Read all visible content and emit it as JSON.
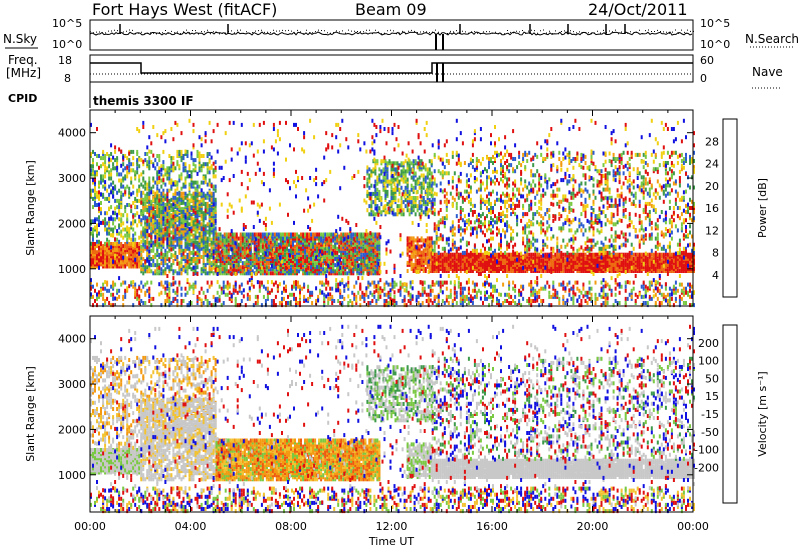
{
  "header": {
    "station": "Fort Hays West (fitACF)",
    "beam": "Beam 09",
    "date": "24/Oct/2011"
  },
  "top_panels": {
    "noise_left_label": "N.Sky",
    "noise_right_label": "N.Search",
    "noise_ticks_left": [
      "10^5",
      "10^0"
    ],
    "noise_ticks_right": [
      "10^5",
      "10^0"
    ],
    "freq_label_1": "Freq.",
    "freq_label_2": "[MHz]",
    "freq_ticks": [
      "18",
      "8"
    ],
    "nave_label": "Nave",
    "nave_ticks": [
      "60",
      "0"
    ],
    "cpid_label": "CPID",
    "cpid_value": "themis 3300 IF"
  },
  "colors": {
    "power": [
      "#1010e0",
      "#2a5bd0",
      "#3c9a4a",
      "#7ac943",
      "#f0d010",
      "#f39c12",
      "#ee6a10",
      "#e01010"
    ],
    "velocity": [
      "#e01010",
      "#ee5a10",
      "#f39a12",
      "#f2c230",
      "#c8c8c8",
      "#c8c8c8",
      "#7ac943",
      "#3c9a4a",
      "#2a5bd0",
      "#1010e0"
    ]
  },
  "chart_data": [
    {
      "type": "heatmap",
      "title": "Power",
      "xlabel": "Time UT",
      "ylabel": "Slant Range [km]",
      "x_ticks": [
        "00:00",
        "04:00",
        "08:00",
        "12:00",
        "16:00",
        "20:00",
        "00:00"
      ],
      "xlim_hours": [
        0,
        24
      ],
      "ylim": [
        180,
        4500
      ],
      "y_ticks": [
        1000,
        2000,
        3000,
        4000
      ],
      "colorbar_label": "Power [dB]",
      "colorbar_ticks": [
        4,
        8,
        12,
        16,
        20,
        24,
        28
      ],
      "colorbar_range": [
        0,
        32
      ],
      "features": [
        {
          "hours": [
            0,
            2
          ],
          "range_km": [
            1050,
            1500
          ],
          "value_db": 24
        },
        {
          "hours": [
            2,
            5
          ],
          "range_km": [
            1000,
            2700
          ],
          "value_db": 14
        },
        {
          "hours": [
            5,
            11.5
          ],
          "range_km": [
            900,
            1800
          ],
          "value_db": 12
        },
        {
          "hours": [
            11,
            13.5
          ],
          "range_km": [
            2300,
            3300
          ],
          "value_db": 10
        },
        {
          "hours": [
            13.5,
            24
          ],
          "range_km": [
            950,
            1300
          ],
          "value_db": 28
        }
      ]
    },
    {
      "type": "heatmap",
      "title": "Velocity",
      "xlabel": "Time UT",
      "ylabel": "Slant Range [km]",
      "x_ticks": [
        "00:00",
        "04:00",
        "08:00",
        "12:00",
        "16:00",
        "20:00",
        "00:00"
      ],
      "xlim_hours": [
        0,
        24
      ],
      "ylim": [
        180,
        4500
      ],
      "y_ticks": [
        1000,
        2000,
        3000,
        4000
      ],
      "colorbar_label": "Velocity [m s⁻¹]",
      "colorbar_ticks": [
        "200",
        "100",
        "50",
        "15",
        "-15",
        "-50",
        "-100",
        "-200"
      ],
      "features": [
        {
          "hours": [
            0,
            5
          ],
          "range_km": [
            900,
            2700
          ],
          "value_ms": 0
        },
        {
          "hours": [
            5,
            11.5
          ],
          "range_km": [
            900,
            1800
          ],
          "value_ms": -60
        },
        {
          "hours": [
            11,
            13.5
          ],
          "range_km": [
            2300,
            3300
          ],
          "value_ms": 60
        },
        {
          "hours": [
            13.5,
            24
          ],
          "range_km": [
            950,
            1500
          ],
          "value_ms": 0
        }
      ]
    }
  ]
}
